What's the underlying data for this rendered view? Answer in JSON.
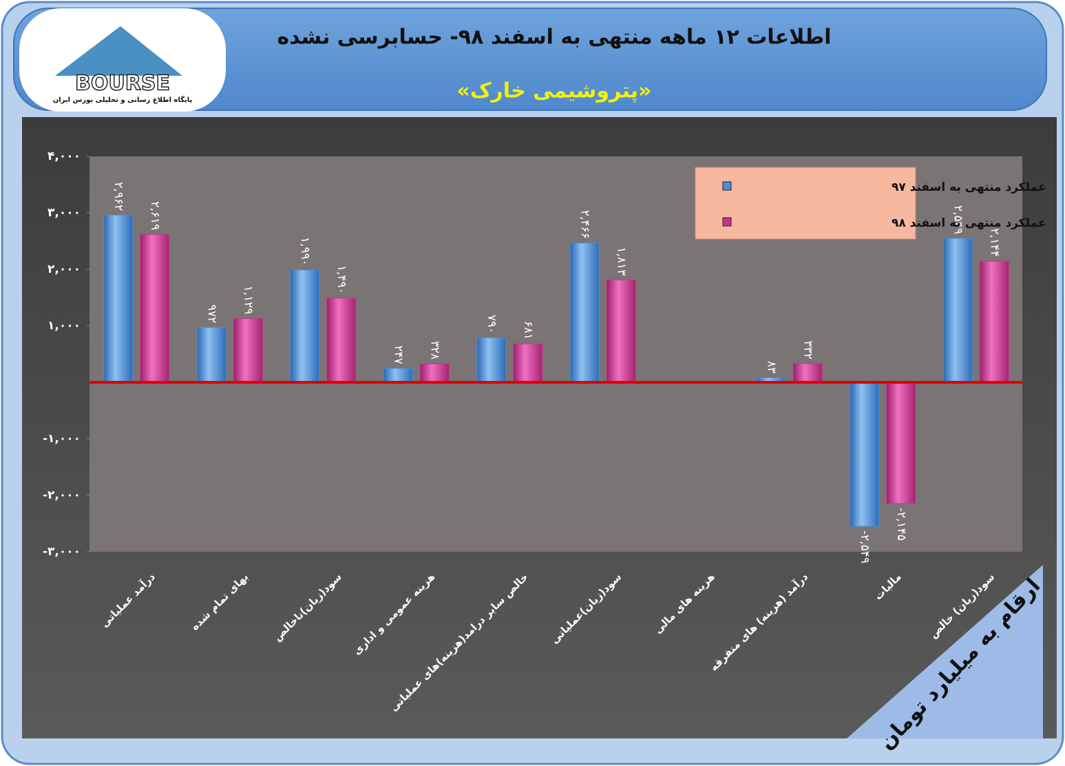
{
  "logo": {
    "name": "BOURSE",
    "tagline": "پایگاه اطلاع رسانی و تحلیلی بورس ایران"
  },
  "chart_data": {
    "type": "bar",
    "title": "اطلاعات ۱۲ ماهه منتهی به اسفند ۹۸- حسابرسی نشده",
    "subtitle": "«پتروشیمی خارک»",
    "annotation": "ارقام به میلیارد تومان",
    "categories": [
      "درآمد عملیاتی",
      "بهای تمام شده",
      "سود(زیان)ناخالص",
      "هزینه عمومی و اداری",
      "خالص سایر درامد(هزینه)های عملیاتی",
      "سود(زیان)عملیاتی",
      "هزینه های مالی",
      "درآمد (هزینه) های متفرقه",
      "مالیات",
      "سود(زیان) خالص"
    ],
    "series": [
      {
        "name": "عملکرد منتهی به اسفند ۹۷",
        "color": "#4a8fd8",
        "values": [
          2962,
          972,
          1990,
          247,
          790,
          2466,
          null,
          83,
          -2549,
          2549
        ],
        "value_labels": [
          "۲,۹۶۲",
          "۹۷۲",
          "۱,۹۹۰",
          "۲۴۷",
          "۷۹۰",
          "۲,۴۶۶",
          null,
          "۸۳",
          "-۲,۵۴۹",
          "۲,۵۴۹"
        ]
      },
      {
        "name": "عملکرد منتهی به اسفند ۹۸",
        "color": "#c8348f",
        "values": [
          2619,
          1129,
          1490,
          328,
          681,
          1813,
          null,
          332,
          -2145,
          2144
        ],
        "value_labels": [
          "۲,۶۱۹",
          "۱,۱۲۹",
          "۱,۴۹۰",
          "۳۲۸",
          "۶۸۱",
          "۱,۸۱۳",
          null,
          "۳۳۲",
          "-۲,۱۴۵",
          "۲,۱۴۴"
        ]
      }
    ],
    "ylim": [
      -3000,
      4000
    ],
    "yticks": [
      {
        "value": 4000,
        "label": "۴,۰۰۰"
      },
      {
        "value": 3000,
        "label": "۳,۰۰۰"
      },
      {
        "value": 2000,
        "label": "۲,۰۰۰"
      },
      {
        "value": 1000,
        "label": "۱,۰۰۰"
      },
      {
        "value": -1000,
        "label": "-۱,۰۰۰"
      },
      {
        "value": -2000,
        "label": "-۲,۰۰۰"
      },
      {
        "value": -3000,
        "label": "-۳,۰۰۰"
      }
    ],
    "zero_line_color": "#e00000"
  }
}
